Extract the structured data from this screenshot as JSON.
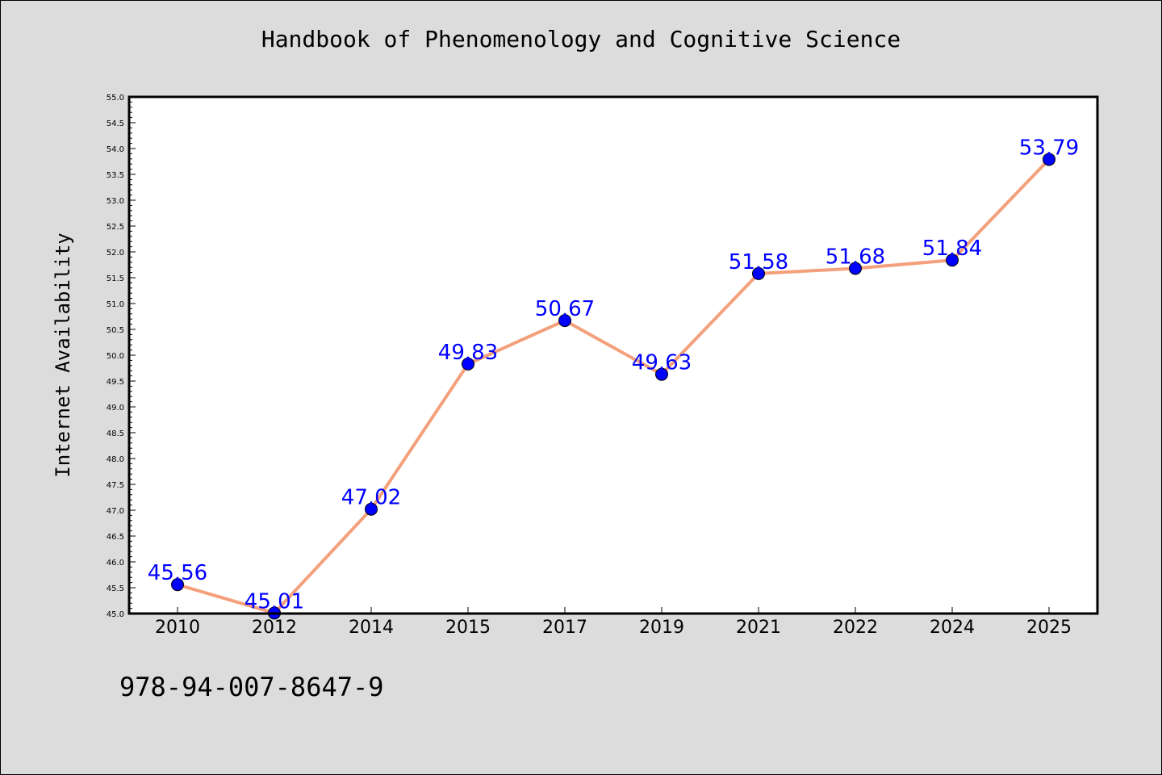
{
  "chart_data": {
    "type": "line",
    "title": "Handbook of Phenomenology and Cognitive Science",
    "xlabel": "",
    "ylabel": "Internet Availability",
    "categories": [
      "2010",
      "2012",
      "2014",
      "2015",
      "2017",
      "2019",
      "2021",
      "2022",
      "2024",
      "2025"
    ],
    "series": [
      {
        "values": [
          45.56,
          45.01,
          47.02,
          49.83,
          50.67,
          49.63,
          51.58,
          51.68,
          51.84,
          53.79
        ],
        "labels": [
          "45.56",
          "45.01",
          "47.02",
          "49.83",
          "50.67",
          "49.63",
          "51.58",
          "51.68",
          "51.84",
          "53.79"
        ]
      }
    ],
    "yticks": [
      "45.0",
      "45.5",
      "46.0",
      "46.5",
      "47.0",
      "47.5",
      "48.0",
      "48.5",
      "49.0",
      "49.5",
      "50.0",
      "50.5",
      "51.0",
      "51.5",
      "52.0",
      "52.5",
      "53.0",
      "53.5",
      "54.0",
      "54.5",
      "55.0"
    ],
    "ylim": [
      45.0,
      55.0
    ],
    "grid": false,
    "line_color": "#f4a07c",
    "marker_color": "#0000ff",
    "label_color": "#0000ff",
    "background": "#dcdcdc",
    "plot_background": "#ffffff"
  },
  "footer": {
    "isbn": "978-94-007-8647-9"
  }
}
